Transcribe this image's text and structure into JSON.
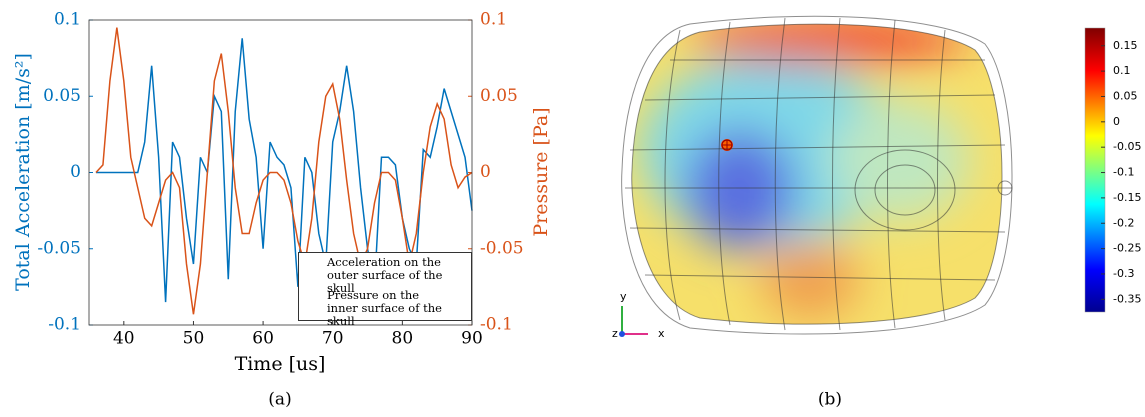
{
  "chart_data": {
    "type": "line",
    "x_label": "Time [us]",
    "y_label": "Total Acceleration [m/s²]",
    "y2_label": "Pressure [Pa]",
    "caption": "(a)",
    "xlim": [
      35,
      90
    ],
    "xticks": [
      40,
      50,
      60,
      70,
      80,
      90
    ],
    "ylim": [
      -0.1,
      0.1
    ],
    "yticks": [
      0.1,
      0.05,
      0,
      -0.05,
      -0.1
    ],
    "y2lim": [
      -0.1,
      0.1
    ],
    "y2ticks": [
      0.1,
      0.05,
      0,
      -0.05,
      -0.1
    ],
    "legend": "lower-right",
    "x": [
      36,
      37,
      38,
      39,
      40,
      41,
      42,
      43,
      44,
      45,
      46,
      47,
      48,
      49,
      50,
      51,
      52,
      53,
      54,
      55,
      56,
      57,
      58,
      59,
      60,
      61,
      62,
      63,
      64,
      65,
      66,
      67,
      68,
      69,
      70,
      71,
      72,
      73,
      74,
      75,
      76,
      77,
      78,
      79,
      80,
      81,
      82,
      83,
      84,
      85,
      86,
      87,
      88,
      89,
      90
    ],
    "series": [
      {
        "name": "Acceleration on the\nouter surface of the skull",
        "color": "#0072bd",
        "values": [
          0,
          0,
          0,
          0,
          0,
          0,
          0,
          0.02,
          0.07,
          0.01,
          -0.085,
          0.02,
          0.01,
          -0.03,
          -0.06,
          0.01,
          0,
          0.05,
          0.04,
          -0.07,
          0.04,
          0.088,
          0.035,
          0.01,
          -0.05,
          0.02,
          0.01,
          0.005,
          -0.01,
          -0.075,
          0.01,
          0,
          -0.04,
          -0.06,
          0.02,
          0.04,
          0.07,
          0.04,
          -0.01,
          -0.05,
          -0.075,
          0.01,
          0.01,
          0.005,
          -0.03,
          -0.05,
          -0.06,
          0.015,
          0.01,
          0.03,
          0.055,
          0.04,
          0.025,
          0.01,
          -0.025
        ]
      },
      {
        "name": "Pressure on the\ninner surface of the skull",
        "color": "#d95319",
        "axis": "y2",
        "values": [
          0,
          0.005,
          0.06,
          0.095,
          0.06,
          0.01,
          -0.01,
          -0.03,
          -0.035,
          -0.02,
          -0.005,
          0,
          -0.01,
          -0.06,
          -0.093,
          -0.06,
          0,
          0.06,
          0.078,
          0.04,
          -0.01,
          -0.04,
          -0.04,
          -0.02,
          -0.005,
          0,
          0,
          -0.005,
          -0.02,
          -0.045,
          -0.06,
          -0.03,
          0.02,
          0.05,
          0.058,
          0.035,
          -0.005,
          -0.04,
          -0.06,
          -0.05,
          -0.02,
          0,
          0,
          -0.005,
          -0.03,
          -0.06,
          -0.04,
          0,
          0.03,
          0.045,
          0.035,
          0.005,
          -0.01,
          -0.003,
          0
        ]
      }
    ]
  },
  "figure_b": {
    "caption": "(b)",
    "triad": {
      "x": "x",
      "y": "y",
      "z": "z"
    },
    "colorbar": {
      "lim": [
        -0.375,
        0.185
      ],
      "ticks": [
        0.15,
        0.1,
        0.05,
        0,
        -0.05,
        -0.1,
        -0.15,
        -0.2,
        -0.25,
        -0.3,
        -0.35
      ]
    }
  }
}
